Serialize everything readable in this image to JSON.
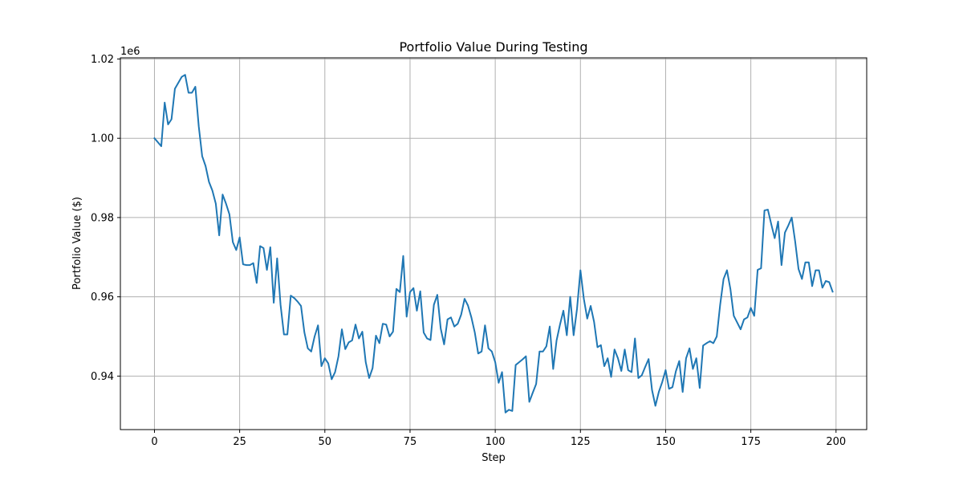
{
  "chart_data": {
    "type": "line",
    "title": "Portfolio Value During Testing",
    "xlabel": "Step",
    "ylabel": "Portfolio Value ($)",
    "y_offset_label": "1e6",
    "xlim": [
      -10,
      209
    ],
    "ylim": [
      0.9265,
      1.0203
    ],
    "x_ticks": [
      0,
      25,
      50,
      75,
      100,
      125,
      150,
      175,
      200
    ],
    "x_tick_labels": [
      "0",
      "25",
      "50",
      "75",
      "100",
      "125",
      "150",
      "175",
      "200"
    ],
    "y_ticks": [
      0.94,
      0.96,
      0.98,
      1.0,
      1.02
    ],
    "y_tick_labels": [
      "0.94",
      "0.96",
      "0.98",
      "1.00",
      "1.02"
    ],
    "grid": true,
    "series": [
      {
        "color": "#1f77b4",
        "x_start": 0,
        "x_step": 1,
        "values": [
          1.0,
          0.999,
          0.998,
          1.009,
          1.0035,
          1.0048,
          1.0125,
          1.014,
          1.0155,
          1.016,
          1.0115,
          1.0115,
          1.013,
          1.003,
          0.9955,
          0.993,
          0.989,
          0.9868,
          0.9835,
          0.9755,
          0.9858,
          0.9835,
          0.9808,
          0.9738,
          0.9718,
          0.975,
          0.9682,
          0.968,
          0.968,
          0.9685,
          0.9635,
          0.9728,
          0.9723,
          0.9668,
          0.9725,
          0.9585,
          0.9697,
          0.958,
          0.9505,
          0.9505,
          0.9603,
          0.9597,
          0.9588,
          0.9577,
          0.951,
          0.947,
          0.9462,
          0.95,
          0.9528,
          0.9425,
          0.9445,
          0.9432,
          0.9392,
          0.941,
          0.945,
          0.9518,
          0.9468,
          0.9485,
          0.949,
          0.953,
          0.9495,
          0.9512,
          0.9435,
          0.9395,
          0.942,
          0.9502,
          0.9483,
          0.9532,
          0.953,
          0.95,
          0.9512,
          0.962,
          0.9612,
          0.9703,
          0.955,
          0.9612,
          0.9622,
          0.9565,
          0.9614,
          0.951,
          0.9495,
          0.9491,
          0.958,
          0.9605,
          0.952,
          0.948,
          0.9543,
          0.9548,
          0.9525,
          0.9532,
          0.9555,
          0.9595,
          0.9578,
          0.9548,
          0.951,
          0.9457,
          0.9462,
          0.9528,
          0.947,
          0.9462,
          0.9435,
          0.9383,
          0.941,
          0.9308,
          0.9315,
          0.9312,
          0.9428,
          0.9435,
          0.9442,
          0.945,
          0.9335,
          0.9358,
          0.938,
          0.9462,
          0.9462,
          0.9475,
          0.9525,
          0.9418,
          0.949,
          0.953,
          0.9565,
          0.9503,
          0.96,
          0.9503,
          0.957,
          0.9667,
          0.9595,
          0.9545,
          0.9577,
          0.9537,
          0.9473,
          0.9478,
          0.9425,
          0.9445,
          0.9398,
          0.9467,
          0.9445,
          0.9413,
          0.9467,
          0.9415,
          0.941,
          0.9495,
          0.9395,
          0.9402,
          0.9423,
          0.9443,
          0.9365,
          0.9325,
          0.936,
          0.9385,
          0.9415,
          0.9368,
          0.9372,
          0.9412,
          0.9438,
          0.936,
          0.9445,
          0.947,
          0.9418,
          0.9445,
          0.937,
          0.9477,
          0.9483,
          0.9488,
          0.9483,
          0.95,
          0.958,
          0.9645,
          0.9667,
          0.962,
          0.9552,
          0.9535,
          0.9518,
          0.9543,
          0.9548,
          0.9572,
          0.9552,
          0.9668,
          0.9672,
          0.9818,
          0.982,
          0.9783,
          0.9748,
          0.979,
          0.968,
          0.9762,
          0.978,
          0.98,
          0.974,
          0.967,
          0.9645,
          0.9687,
          0.9687,
          0.9627,
          0.9667,
          0.9667,
          0.9623,
          0.964,
          0.9637,
          0.9613
        ]
      }
    ]
  }
}
